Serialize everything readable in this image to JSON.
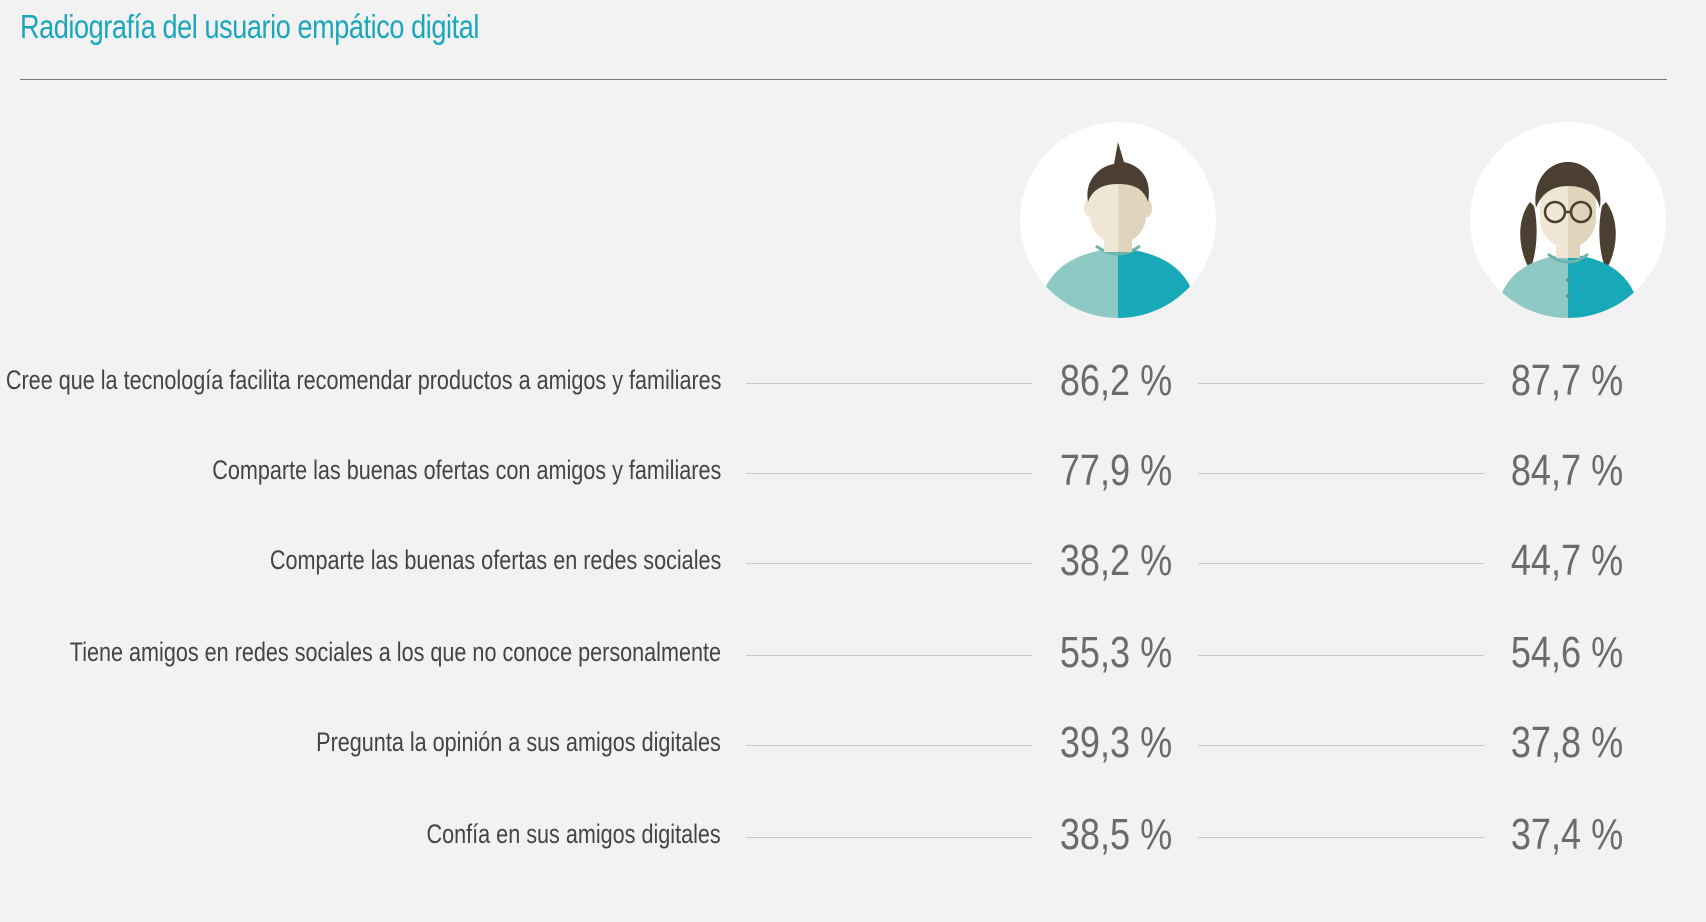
{
  "title": "Radiografía del usuario empático digital",
  "colors": {
    "title": "#1aa7bd",
    "value": "#6b6b6b",
    "label": "#444444",
    "teal_dark": "#17a9b8",
    "teal_light": "#8ec9c4",
    "skin_light": "#efe6d6",
    "skin_dark": "#e0d4bd",
    "hair": "#4a3f30"
  },
  "icons": {
    "male": "male-avatar-icon",
    "female": "female-avatar-icon"
  },
  "chart_data": {
    "type": "table",
    "series": [
      {
        "icon": "male-avatar-icon",
        "values": [
          86.2,
          77.9,
          38.2,
          55.3,
          39.3,
          38.5
        ]
      },
      {
        "icon": "female-avatar-icon",
        "values": [
          87.7,
          84.7,
          44.7,
          54.6,
          37.8,
          37.4
        ]
      }
    ],
    "unit": "%",
    "rows": [
      {
        "label": "Cree que la tecnología facilita recomendar productos a amigos y familiares",
        "male": "86,2 %",
        "female": "87,7 %"
      },
      {
        "label": "Comparte las buenas ofertas con amigos y familiares",
        "male": "77,9 %",
        "female": "84,7 %"
      },
      {
        "label": "Comparte las buenas ofertas en redes sociales",
        "male": "38,2 %",
        "female": "44,7 %"
      },
      {
        "label": "Tiene amigos en redes sociales a los que no conoce personalmente",
        "male": "55,3 %",
        "female": "54,6 %"
      },
      {
        "label": "Pregunta la opinión a sus amigos digitales",
        "male": "39,3 %",
        "female": "37,8 %"
      },
      {
        "label": "Confía en sus amigos digitales",
        "male": "38,5 %",
        "female": "37,4 %"
      }
    ]
  }
}
